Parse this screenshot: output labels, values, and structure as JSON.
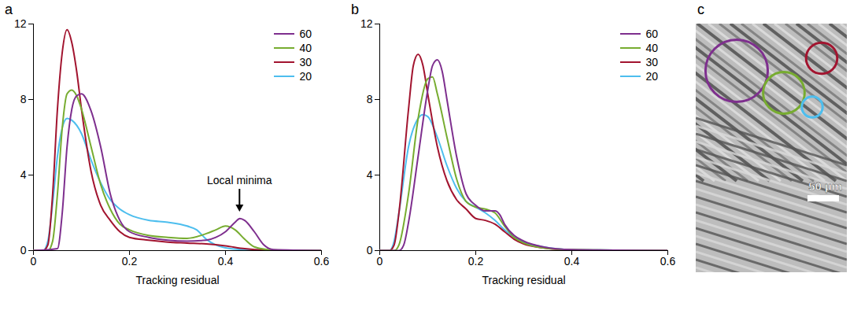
{
  "chart_data": [
    {
      "type": "line",
      "title": "a",
      "x_label": "Tracking residual",
      "xlim": [
        0,
        0.6
      ],
      "xticks": [
        0,
        0.2,
        0.4,
        0.6
      ],
      "ylim": [
        0,
        12
      ],
      "yticks": [
        0,
        4,
        8,
        12
      ],
      "grid": false,
      "legend": "top-right",
      "annotations": [
        {
          "text": "Local minima",
          "x": 0.43,
          "y": 2.0
        }
      ],
      "series": [
        {
          "name": "60",
          "color": "#7e2f8e",
          "x": [
            0,
            0.05,
            0.06,
            0.07,
            0.08,
            0.09,
            0.1,
            0.12,
            0.14,
            0.16,
            0.18,
            0.2,
            0.24,
            0.28,
            0.32,
            0.36,
            0.38,
            0.4,
            0.42,
            0.43,
            0.44,
            0.46,
            0.48,
            0.5,
            0.6
          ],
          "values": [
            0,
            0.1,
            2,
            5.5,
            7.5,
            8.2,
            8.3,
            7.4,
            5.5,
            3,
            1.6,
            1.0,
            0.7,
            0.55,
            0.5,
            0.55,
            0.7,
            1.0,
            1.5,
            1.7,
            1.6,
            1.0,
            0.3,
            0.05,
            0
          ]
        },
        {
          "name": "40",
          "color": "#77ac30",
          "x": [
            0,
            0.03,
            0.04,
            0.05,
            0.06,
            0.07,
            0.08,
            0.09,
            0.1,
            0.12,
            0.14,
            0.16,
            0.18,
            0.2,
            0.24,
            0.28,
            0.32,
            0.36,
            0.38,
            0.4,
            0.42,
            0.44,
            0.46,
            0.5,
            0.6
          ],
          "values": [
            0,
            0,
            0.5,
            3,
            6.5,
            8.3,
            8.5,
            8.2,
            7.5,
            5.5,
            3.5,
            2.2,
            1.4,
            1.1,
            0.8,
            0.7,
            0.65,
            0.9,
            1.1,
            1.3,
            1.1,
            0.6,
            0.2,
            0.03,
            0
          ]
        },
        {
          "name": "30",
          "color": "#a2142f",
          "x": [
            0,
            0.02,
            0.03,
            0.04,
            0.05,
            0.06,
            0.07,
            0.08,
            0.09,
            0.1,
            0.12,
            0.14,
            0.16,
            0.18,
            0.2,
            0.24,
            0.28,
            0.32,
            0.36,
            0.4,
            0.44,
            0.48,
            0.6
          ],
          "values": [
            0,
            0,
            0.3,
            3,
            7.5,
            10.5,
            11.7,
            11,
            9.5,
            7.5,
            4.2,
            2.4,
            1.6,
            1.0,
            0.7,
            0.55,
            0.45,
            0.4,
            0.35,
            0.25,
            0.1,
            0.03,
            0
          ]
        },
        {
          "name": "20",
          "color": "#4dbeee",
          "x": [
            0,
            0.02,
            0.03,
            0.04,
            0.05,
            0.06,
            0.07,
            0.08,
            0.1,
            0.12,
            0.14,
            0.16,
            0.18,
            0.2,
            0.24,
            0.28,
            0.32,
            0.34,
            0.36,
            0.38,
            0.4,
            0.44,
            0.6
          ],
          "values": [
            0,
            0,
            0.5,
            2.5,
            5,
            6.5,
            7,
            6.9,
            6.2,
            4.8,
            3.6,
            2.7,
            2.2,
            1.9,
            1.6,
            1.5,
            1.3,
            1.1,
            0.6,
            0.3,
            0.15,
            0.05,
            0
          ]
        }
      ]
    },
    {
      "type": "line",
      "title": "b",
      "x_label": "Tracking residual",
      "xlim": [
        0,
        0.6
      ],
      "xticks": [
        0,
        0.2,
        0.4,
        0.6
      ],
      "ylim": [
        0,
        12
      ],
      "yticks": [
        0,
        4,
        8,
        12
      ],
      "grid": false,
      "legend": "top-right",
      "series": [
        {
          "name": "60",
          "color": "#7e2f8e",
          "x": [
            0,
            0.04,
            0.05,
            0.06,
            0.08,
            0.1,
            0.11,
            0.12,
            0.13,
            0.14,
            0.16,
            0.18,
            0.2,
            0.22,
            0.24,
            0.25,
            0.26,
            0.28,
            0.3,
            0.34,
            0.4,
            0.6
          ],
          "values": [
            0,
            0,
            0.3,
            1.5,
            5,
            8.5,
            9.8,
            10.1,
            9.5,
            8,
            5,
            3,
            2.4,
            2.1,
            2.1,
            1.9,
            1.4,
            0.8,
            0.5,
            0.2,
            0.05,
            0
          ]
        },
        {
          "name": "40",
          "color": "#77ac30",
          "x": [
            0,
            0.03,
            0.04,
            0.06,
            0.08,
            0.1,
            0.11,
            0.12,
            0.14,
            0.16,
            0.18,
            0.2,
            0.22,
            0.24,
            0.26,
            0.28,
            0.3,
            0.34,
            0.4,
            0.6
          ],
          "values": [
            0,
            0,
            0.3,
            3,
            7,
            9.1,
            9.2,
            8.3,
            6,
            3.8,
            2.6,
            2.3,
            2.2,
            2.0,
            1.3,
            0.7,
            0.4,
            0.15,
            0.05,
            0
          ]
        },
        {
          "name": "30",
          "color": "#a2142f",
          "x": [
            0,
            0.02,
            0.03,
            0.04,
            0.06,
            0.07,
            0.08,
            0.09,
            0.1,
            0.12,
            0.14,
            0.16,
            0.18,
            0.2,
            0.22,
            0.24,
            0.26,
            0.28,
            0.3,
            0.34,
            0.4,
            0.6
          ],
          "values": [
            0,
            0,
            0.3,
            2,
            7.5,
            9.8,
            10.4,
            9.8,
            8.3,
            5.5,
            3.7,
            2.7,
            2.2,
            1.7,
            1.6,
            1.4,
            1.0,
            0.6,
            0.35,
            0.15,
            0.03,
            0
          ]
        },
        {
          "name": "20",
          "color": "#4dbeee",
          "x": [
            0,
            0.02,
            0.03,
            0.04,
            0.06,
            0.08,
            0.09,
            0.1,
            0.12,
            0.14,
            0.16,
            0.18,
            0.2,
            0.22,
            0.24,
            0.26,
            0.28,
            0.3,
            0.34,
            0.4,
            0.6
          ],
          "values": [
            0,
            0,
            0.5,
            2,
            5.5,
            7,
            7.2,
            7.1,
            6,
            4.5,
            3.3,
            2.6,
            2.3,
            2.0,
            1.6,
            1.1,
            0.7,
            0.45,
            0.2,
            0.05,
            0
          ]
        }
      ]
    },
    {
      "type": "image",
      "title": "c",
      "scale_bar": "50 µm",
      "circles": [
        {
          "name": "60",
          "color": "#7e2f8e"
        },
        {
          "name": "40",
          "color": "#77ac30"
        },
        {
          "name": "30",
          "color": "#a2142f"
        },
        {
          "name": "20",
          "color": "#4dbeee"
        }
      ]
    }
  ]
}
